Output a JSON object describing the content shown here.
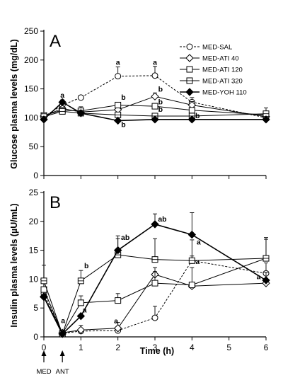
{
  "chart_data": [
    {
      "type": "line",
      "panel": "A",
      "ylabel": "Glucose plasma levels (mg/dL)",
      "xlabel": "",
      "ylim": [
        0,
        250
      ],
      "yticks": [
        "0",
        "50",
        "100",
        "150",
        "200",
        "250"
      ],
      "xlim": [
        0,
        6
      ],
      "series": [
        {
          "name": "MED-SAL",
          "marker": "circle-open",
          "dash": true,
          "x": [
            0,
            0.5,
            1,
            2,
            3,
            4,
            6
          ],
          "y": [
            102,
            122,
            135,
            172,
            173,
            127,
            100
          ],
          "err": [
            0,
            0,
            4,
            16,
            16,
            8,
            4
          ]
        },
        {
          "name": "MED-ATI  40",
          "marker": "diamond-open",
          "dash": false,
          "x": [
            0,
            0.5,
            1,
            2,
            3,
            4,
            6
          ],
          "y": [
            103,
            116,
            110,
            114,
            137,
            122,
            102
          ],
          "err": [
            0,
            0,
            0,
            0,
            6,
            6,
            0
          ]
        },
        {
          "name": "MED-ATI  120",
          "marker": "square-open",
          "dash": false,
          "x": [
            0,
            0.5,
            1,
            2,
            3,
            4,
            6
          ],
          "y": [
            104,
            113,
            112,
            122,
            120,
            113,
            105
          ],
          "err": [
            4,
            0,
            7,
            4,
            5,
            4,
            4
          ]
        },
        {
          "name": "MED-ATI  320",
          "marker": "square-cross",
          "dash": false,
          "x": [
            0,
            0.5,
            1,
            2,
            3,
            4,
            6
          ],
          "y": [
            102,
            111,
            108,
            105,
            103,
            103,
            107
          ],
          "err": [
            4,
            4,
            0,
            4,
            4,
            0,
            10
          ]
        },
        {
          "name": "MED-YOH 110",
          "marker": "diamond-filled",
          "dash": false,
          "x": [
            0,
            0.5,
            1,
            2,
            3,
            4,
            6
          ],
          "y": [
            97,
            127,
            108,
            95,
            97,
            97,
            97
          ],
          "err": [
            0,
            4,
            0,
            0,
            0,
            0,
            0
          ]
        }
      ],
      "annotations": [
        {
          "text": "a",
          "x": 0.5,
          "y": 135
        },
        {
          "text": "a",
          "x": 2,
          "y": 192
        },
        {
          "text": "a",
          "x": 3,
          "y": 192
        },
        {
          "text": "b",
          "x": 2.15,
          "y": 131
        },
        {
          "text": "b",
          "x": 3.15,
          "y": 145
        },
        {
          "text": "b",
          "x": 3.15,
          "y": 123
        },
        {
          "text": "b",
          "x": 3.15,
          "y": 110
        },
        {
          "text": "b",
          "x": 4.15,
          "y": 99
        },
        {
          "text": "b",
          "x": 2.15,
          "y": 84
        }
      ]
    },
    {
      "type": "line",
      "panel": "B",
      "ylabel": "Insulin plasma  levels (µU/mL)",
      "xlabel": "Time (h)",
      "ylim": [
        0,
        25
      ],
      "yticks": [
        "0",
        "5",
        "10",
        "15",
        "20",
        "25"
      ],
      "xlim": [
        0,
        6
      ],
      "xticks": [
        "0",
        "1",
        "2",
        "3",
        "4",
        "5",
        "6"
      ],
      "series": [
        {
          "name": "MED-SAL",
          "marker": "circle-open",
          "dash": true,
          "x": [
            0,
            0.5,
            1,
            2,
            3,
            4,
            6
          ],
          "y": [
            7.5,
            0.6,
            1.0,
            1.1,
            3.3,
            13.2,
            11.0
          ],
          "err": [
            0,
            0,
            0.5,
            0.5,
            2.0,
            0.8,
            1.8
          ]
        },
        {
          "name": "MED-ATI  40",
          "marker": "diamond-open",
          "dash": false,
          "x": [
            0,
            0.5,
            1,
            2,
            3,
            4,
            6
          ],
          "y": [
            7.0,
            0.7,
            1.2,
            1.5,
            10.8,
            8.8,
            9.3
          ],
          "err": [
            0,
            0,
            0.8,
            1.0,
            1.2,
            0,
            0
          ]
        },
        {
          "name": "MED-ATI  120",
          "marker": "square-open",
          "dash": false,
          "x": [
            0,
            0.5,
            1,
            2,
            3,
            4,
            6
          ],
          "y": [
            8.2,
            0.6,
            5.9,
            6.3,
            9.3,
            9.0,
            13.6
          ],
          "err": [
            0,
            0,
            1.2,
            1.2,
            2.0,
            3.0,
            3.3
          ]
        },
        {
          "name": "MED-ATI  320",
          "marker": "square-cross",
          "dash": false,
          "x": [
            0,
            0.5,
            1,
            2,
            3,
            4,
            6
          ],
          "y": [
            9.7,
            0.5,
            9.7,
            14.2,
            13.4,
            13.2,
            13.6
          ],
          "err": [
            2.7,
            0,
            1.8,
            2.8,
            3.6,
            3.6,
            3.6
          ]
        },
        {
          "name": "MED-YOH 110",
          "marker": "diamond-filled",
          "dash": false,
          "x": [
            0,
            0.5,
            1,
            2,
            3,
            4,
            6
          ],
          "y": [
            6.9,
            0.5,
            3.6,
            15.0,
            19.5,
            17.7,
            9.8
          ],
          "err": [
            0,
            0,
            0,
            2.5,
            1.8,
            3.8,
            1.4
          ]
        }
      ],
      "annotations": [
        {
          "text": "a",
          "x": 0.52,
          "y": 2.4
        },
        {
          "text": "a",
          "x": 1.1,
          "y": 4.2
        },
        {
          "text": "b",
          "x": 1.15,
          "y": 11.9
        },
        {
          "text": "ab",
          "x": 2.2,
          "y": 16.8
        },
        {
          "text": "ab",
          "x": 3.2,
          "y": 20.0
        },
        {
          "text": "a",
          "x": 4.18,
          "y": 16.0
        },
        {
          "text": "a",
          "x": 4.15,
          "y": 12.6
        },
        {
          "text": "a",
          "x": 1.95,
          "y": 2.3
        },
        {
          "text": "a",
          "x": 5.8,
          "y": 10.0
        }
      ],
      "arrows": [
        {
          "label": "MED",
          "x": 0
        },
        {
          "label": "ANT",
          "x": 0.5
        }
      ]
    }
  ]
}
